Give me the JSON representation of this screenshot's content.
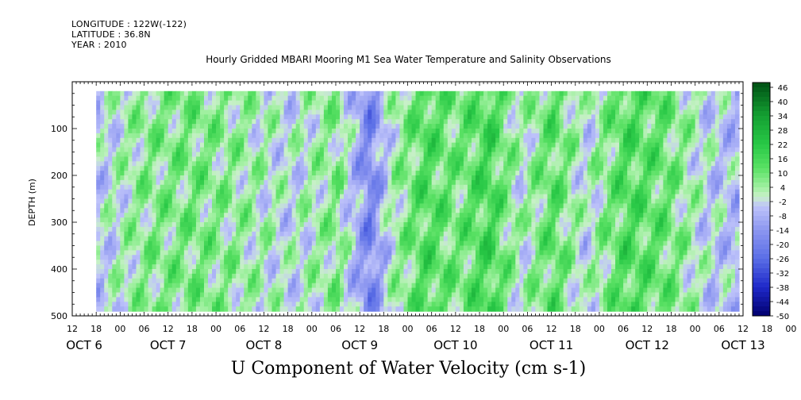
{
  "header": {
    "longitude": "LONGITUDE : 122W(-122)",
    "latitude": "LATITUDE : 36.8N",
    "year": "YEAR : 2010"
  },
  "chart_data": {
    "type": "heatmap",
    "title": "Hourly Gridded MBARI Mooring M1 Sea Water Temperature and Salinity Observations",
    "xlabel": "U Component of Water Velocity (cm s-1)",
    "ylabel": "DEPTH (m)",
    "x_range_hours": [
      12,
      180
    ],
    "x_hour_ticks": [
      "12",
      "18",
      "00",
      "06",
      "12",
      "18",
      "00",
      "06",
      "12",
      "18",
      "00",
      "06",
      "12",
      "18",
      "00",
      "06",
      "12",
      "18",
      "00",
      "06",
      "12",
      "18",
      "00",
      "06",
      "12",
      "18",
      "00",
      "06",
      "12",
      "18",
      "00",
      "06"
    ],
    "date_labels": [
      "OCT  6",
      "OCT  7",
      "OCT  8",
      "OCT  9",
      "OCT 10",
      "OCT 11",
      "OCT 12",
      "OCT 13"
    ],
    "y_range": [
      500,
      0
    ],
    "y_ticks": [
      100,
      200,
      300,
      400,
      500
    ],
    "data_depth_range": [
      20,
      485
    ],
    "colorbar_levels": [
      48,
      46,
      44,
      42,
      40,
      38,
      36,
      34,
      32,
      30,
      28,
      26,
      24,
      22,
      20,
      18,
      16,
      14,
      12,
      10,
      8,
      6,
      4,
      2,
      0,
      -2,
      -4,
      -6,
      -8,
      -10,
      -12,
      -14,
      -16,
      -18,
      -20,
      -22,
      -24,
      -26,
      -28,
      -30,
      -32,
      -34,
      -36,
      -38,
      -40,
      -42,
      -44,
      -46,
      -48,
      -50
    ],
    "colorbar_labels": [
      "46",
      "40",
      "34",
      "28",
      "22",
      "16",
      "10",
      "4",
      "-2",
      "-8",
      "-14",
      "-20",
      "-26",
      "-32",
      "-38",
      "-44",
      "-50"
    ],
    "dominant_pattern": [
      {
        "hour": 18,
        "value": -4
      },
      {
        "hour": 30,
        "value": 6
      },
      {
        "hour": 42,
        "value": 8
      },
      {
        "hour": 54,
        "value": 4
      },
      {
        "hour": 66,
        "value": -2
      },
      {
        "hour": 78,
        "value": 6
      },
      {
        "hour": 86,
        "value": -18
      },
      {
        "hour": 92,
        "value": 2
      },
      {
        "hour": 100,
        "value": 14
      },
      {
        "hour": 108,
        "value": 8
      },
      {
        "hour": 116,
        "value": 16
      },
      {
        "hour": 124,
        "value": 0
      },
      {
        "hour": 132,
        "value": 12
      },
      {
        "hour": 140,
        "value": -2
      },
      {
        "hour": 150,
        "value": 14
      },
      {
        "hour": 160,
        "value": 10
      },
      {
        "hour": 170,
        "value": -2
      },
      {
        "hour": 178,
        "value": -6
      }
    ]
  }
}
